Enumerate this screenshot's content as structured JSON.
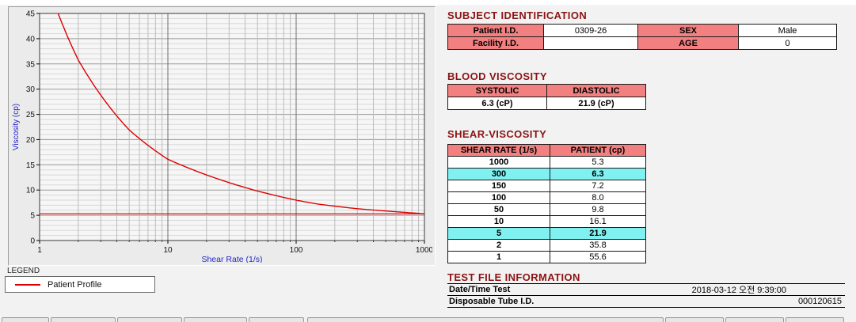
{
  "chart_data": {
    "type": "line",
    "title": "",
    "xlabel": "Shear Rate (1/s)",
    "ylabel": "Viscosity (cp)",
    "x_scale": "log",
    "xlim": [
      1,
      1000
    ],
    "ylim": [
      0,
      45
    ],
    "x_ticks": [
      1,
      10,
      100,
      1000
    ],
    "y_ticks": [
      0,
      5,
      10,
      15,
      20,
      25,
      30,
      35,
      40,
      45
    ],
    "grid": true,
    "series": [
      {
        "name": "Patient Profile",
        "color": "#dd0000",
        "x": [
          1,
          2,
          5,
          10,
          50,
          100,
          150,
          300,
          1000
        ],
        "y": [
          55.6,
          35.8,
          21.9,
          16.1,
          9.8,
          8.0,
          7.2,
          6.3,
          5.3
        ]
      }
    ],
    "baseline_y": 5.3,
    "legend": {
      "title": "LEGEND",
      "entries": [
        {
          "label": "Patient Profile",
          "color": "#dd0000"
        }
      ]
    }
  },
  "subject": {
    "title": "SUBJECT IDENTIFICATION",
    "rows": [
      {
        "label1": "Patient I.D.",
        "value1": "0309-26",
        "label2": "SEX",
        "value2": "Male"
      },
      {
        "label1": "Facility I.D.",
        "value1": "",
        "label2": "AGE",
        "value2": "0"
      }
    ]
  },
  "blood_viscosity": {
    "title": "BLOOD VISCOSITY",
    "headers": [
      "SYSTOLIC",
      "DIASTOLIC"
    ],
    "values": [
      "6.3 (cP)",
      "21.9 (cP)"
    ]
  },
  "shear_viscosity": {
    "title": "SHEAR-VISCOSITY",
    "headers": [
      "SHEAR RATE (1/s)",
      "PATIENT (cp)"
    ],
    "rows": [
      {
        "rate": "1000",
        "value": "5.3",
        "highlight": false
      },
      {
        "rate": "300",
        "value": "6.3",
        "highlight": true
      },
      {
        "rate": "150",
        "value": "7.2",
        "highlight": false
      },
      {
        "rate": "100",
        "value": "8.0",
        "highlight": false
      },
      {
        "rate": "50",
        "value": "9.8",
        "highlight": false
      },
      {
        "rate": "10",
        "value": "16.1",
        "highlight": false
      },
      {
        "rate": "5",
        "value": "21.9",
        "highlight": true
      },
      {
        "rate": "2",
        "value": "35.8",
        "highlight": false
      },
      {
        "rate": "1",
        "value": "55.6",
        "highlight": false
      }
    ]
  },
  "test_file": {
    "title": "TEST FILE INFORMATION",
    "rows": [
      {
        "label": "Date/Time Test",
        "value": "2018-03-12  오전 9:39:00"
      },
      {
        "label": "Disposable Tube I.D.",
        "value": "000120615"
      }
    ]
  },
  "colors": {
    "header_text": "#8b1414",
    "cell_pink": "#f38080",
    "highlight_cyan": "#80f0f0",
    "line_red": "#dd0000",
    "axis_label_blue": "#2323c8"
  }
}
